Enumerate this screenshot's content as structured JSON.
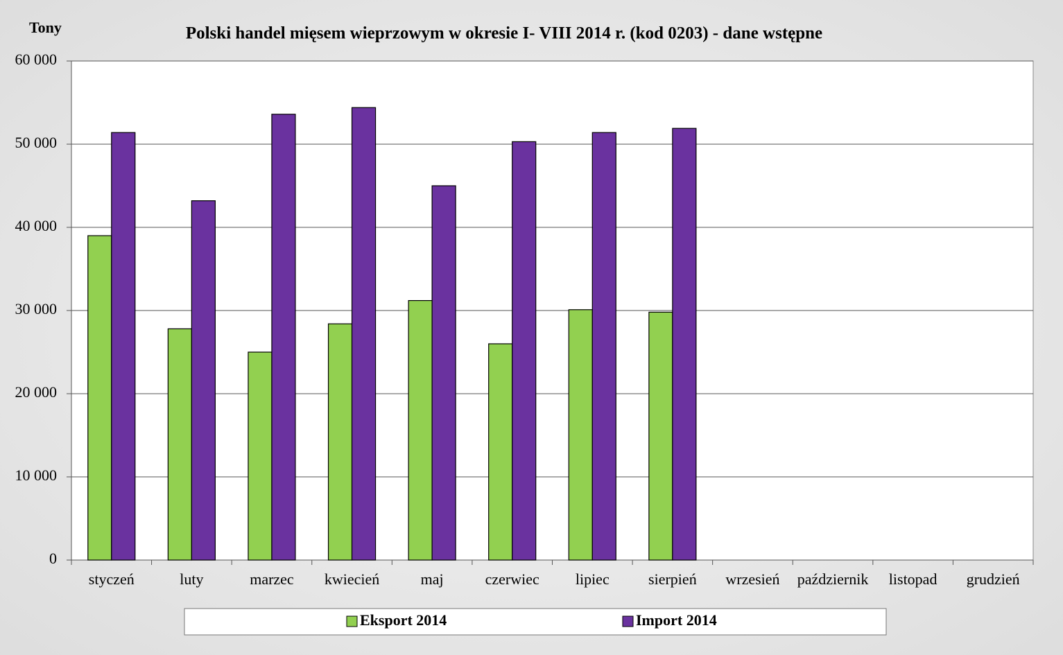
{
  "chart_data": {
    "type": "bar",
    "title": "Polski handel mięsem wieprzowym  w okresie  I- VIII   2014 r. (kod 0203) - dane wstępne",
    "y_axis_label": "Tony",
    "categories": [
      "styczeń",
      "luty",
      "marzec",
      "kwiecień",
      "maj",
      "czerwiec",
      "lipiec",
      "sierpień",
      "wrzesień",
      "październik",
      "listopad",
      "grudzień"
    ],
    "series": [
      {
        "name": "Eksport 2014",
        "color": "#92d050",
        "values": [
          39000,
          27800,
          25000,
          28400,
          31200,
          26000,
          30100,
          29800,
          null,
          null,
          null,
          null
        ]
      },
      {
        "name": "Import 2014",
        "color": "#6a329f",
        "values": [
          51400,
          43200,
          53600,
          54400,
          45000,
          50300,
          51400,
          51900,
          null,
          null,
          null,
          null
        ]
      }
    ],
    "ylim": [
      0,
      60000
    ],
    "yticks": [
      0,
      {
        "value": 10000,
        "label": "10 000"
      },
      {
        "value": 20000,
        "label": "20 000"
      },
      {
        "value": 30000,
        "label": "30 000"
      },
      {
        "value": 40000,
        "label": "40 000"
      },
      {
        "value": 50000,
        "label": "50 000"
      },
      {
        "value": 60000,
        "label": "60 000"
      }
    ],
    "grid": true,
    "legend": "bottom"
  }
}
